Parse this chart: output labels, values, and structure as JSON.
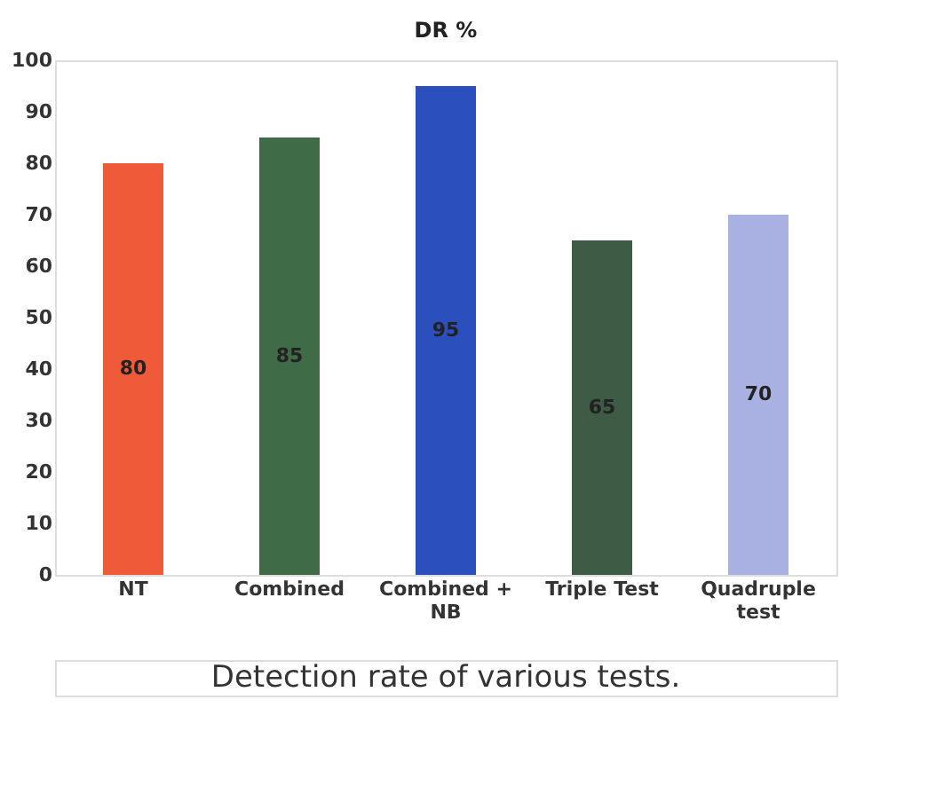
{
  "chart_data": {
    "type": "bar",
    "title": "DR %",
    "categories": [
      "NT",
      "Combined",
      "Combined + NB",
      "Triple Test",
      "Quadruple test"
    ],
    "values": [
      80,
      85,
      95,
      65,
      70
    ],
    "colors": [
      "#ef5a38",
      "#3f6b47",
      "#2b4fbd",
      "#3d5b45",
      "#a9b1e2"
    ],
    "ylim": [
      0,
      100
    ],
    "yticks": [
      0,
      10,
      20,
      30,
      40,
      50,
      60,
      70,
      80,
      90,
      100
    ],
    "data_labels": true,
    "grid": false,
    "annotations": [
      "Detection rate of various tests."
    ]
  }
}
